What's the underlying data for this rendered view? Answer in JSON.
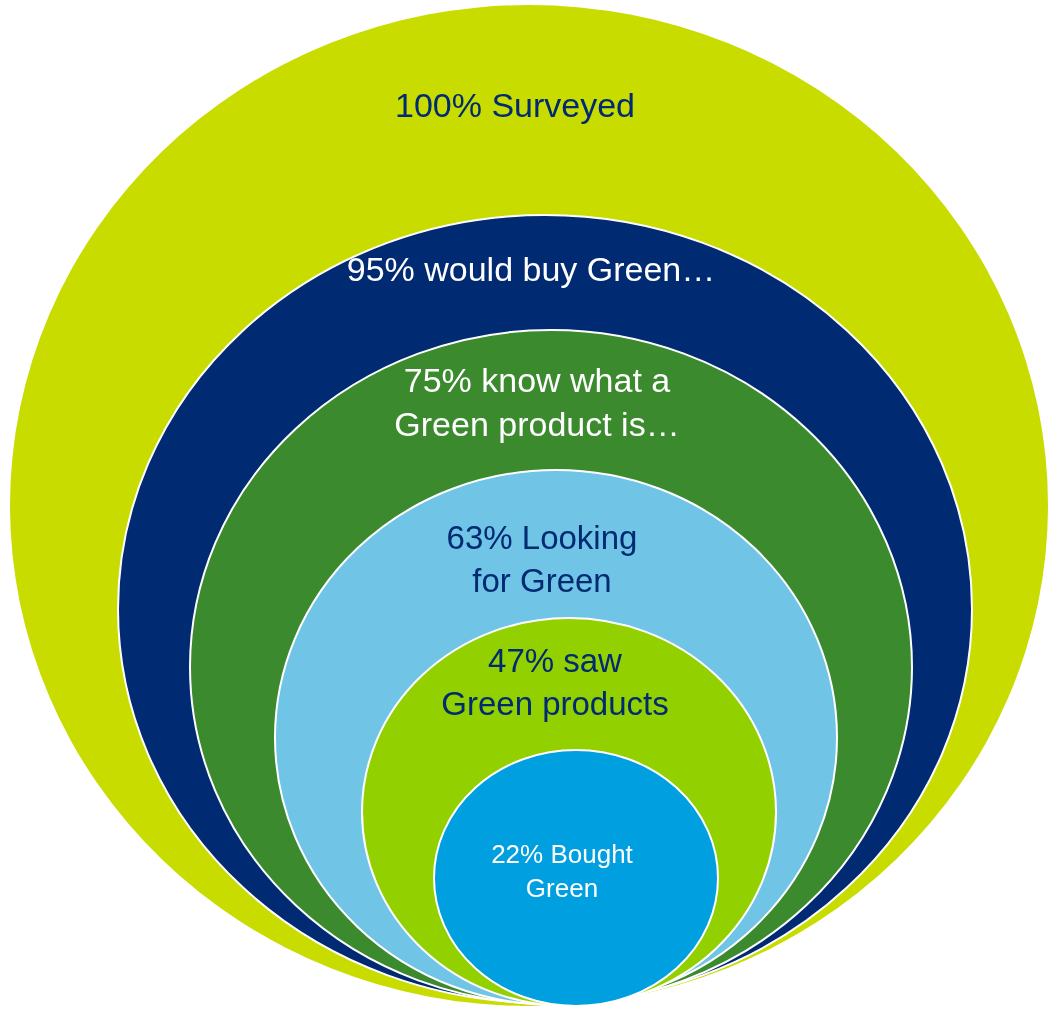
{
  "chart_data": {
    "type": "other",
    "categories": [
      "Surveyed",
      "would buy Green…",
      "know what a Green product is…",
      "Looking for Green",
      "saw Green products",
      "Bought Green"
    ],
    "values": [
      100,
      95,
      75,
      63,
      47,
      22
    ],
    "value_labels": [
      "100%",
      "95%",
      "75%",
      "63%",
      "47%",
      "22%"
    ],
    "colors": [
      "#c8dc00",
      "#002a72",
      "#3c8a2e",
      "#70c4e6",
      "#92d000",
      "#009fdf"
    ]
  }
}
